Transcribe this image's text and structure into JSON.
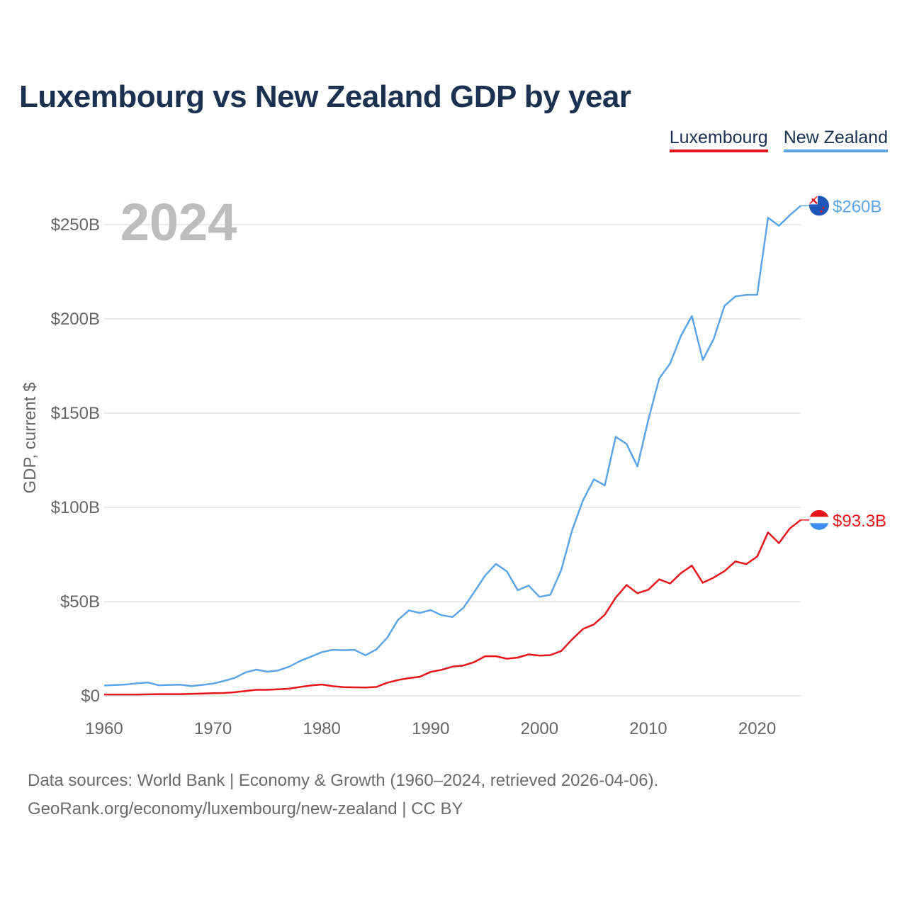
{
  "title": "Luxembourg vs New Zealand GDP by year",
  "footer": {
    "source": "Data sources: World Bank | Economy & Growth (1960–2024, retrieved 2026-04-06).",
    "site": "GeoRank.org/economy/luxembourg/new-zealand | CC BY"
  },
  "chart_data": {
    "type": "line",
    "title": "Luxembourg vs New Zealand GDP by year",
    "year_label": "2024",
    "xlabel": "",
    "ylabel": "GDP, current $",
    "xlim": [
      1960,
      2024
    ],
    "ylim": [
      0,
      260
    ],
    "unit": "billion USD",
    "x_ticks": [
      1960,
      1970,
      1980,
      1990,
      2000,
      2010,
      2020
    ],
    "y_ticks": [
      0,
      50,
      100,
      150,
      200,
      250
    ],
    "y_tick_labels": [
      "$0",
      "$50B",
      "$100B",
      "$150B",
      "$200B",
      "$250B"
    ],
    "grid": true,
    "legend_position": "top-right",
    "x": [
      1960,
      1961,
      1962,
      1963,
      1964,
      1965,
      1966,
      1967,
      1968,
      1969,
      1970,
      1971,
      1972,
      1973,
      1974,
      1975,
      1976,
      1977,
      1978,
      1979,
      1980,
      1981,
      1982,
      1983,
      1984,
      1985,
      1986,
      1987,
      1988,
      1989,
      1990,
      1991,
      1992,
      1993,
      1994,
      1995,
      1996,
      1997,
      1998,
      1999,
      2000,
      2001,
      2002,
      2003,
      2004,
      2005,
      2006,
      2007,
      2008,
      2009,
      2010,
      2011,
      2012,
      2013,
      2014,
      2015,
      2016,
      2017,
      2018,
      2019,
      2020,
      2021,
      2022,
      2023,
      2024
    ],
    "series": [
      {
        "name": "Luxembourg",
        "color": "#e8141b",
        "end_label": "$93.3B",
        "flag": "luxembourg-flag",
        "values": [
          0.7,
          0.7,
          0.7,
          0.7,
          0.8,
          0.9,
          0.9,
          0.9,
          1.0,
          1.2,
          1.4,
          1.5,
          1.9,
          2.6,
          3.2,
          3.2,
          3.5,
          3.8,
          4.7,
          5.5,
          6.0,
          5.1,
          4.6,
          4.5,
          4.4,
          4.7,
          6.9,
          8.4,
          9.4,
          10.1,
          12.7,
          13.8,
          15.5,
          16.1,
          17.9,
          21.0,
          21.0,
          19.7,
          20.3,
          22.0,
          21.3,
          21.6,
          23.8,
          30.0,
          35.5,
          37.9,
          43.0,
          52.1,
          58.8,
          54.4,
          56.3,
          61.8,
          59.6,
          65.1,
          69.1,
          60.0,
          62.7,
          66.2,
          71.3,
          69.9,
          73.9,
          86.7,
          81.0,
          88.8,
          93.3
        ]
      },
      {
        "name": "New Zealand",
        "color": "#5da5e6",
        "end_label": "$260B",
        "flag": "new-zealand-flag",
        "values": [
          5.5,
          5.7,
          6.0,
          6.6,
          7.1,
          5.6,
          5.8,
          5.9,
          5.2,
          5.8,
          6.5,
          7.9,
          9.5,
          12.5,
          13.9,
          12.8,
          13.5,
          15.5,
          18.5,
          20.8,
          23.2,
          24.4,
          24.2,
          24.4,
          21.5,
          24.6,
          30.7,
          40.3,
          45.3,
          44.0,
          45.5,
          42.8,
          41.8,
          46.7,
          55.0,
          63.8,
          70.0,
          66.0,
          56.0,
          58.5,
          52.5,
          53.6,
          66.8,
          88.0,
          103.8,
          114.9,
          111.6,
          137.4,
          133.6,
          121.7,
          146.5,
          168.3,
          176.3,
          191.0,
          201.5,
          178.2,
          189.3,
          206.9,
          211.9,
          212.7,
          212.8,
          253.7,
          249.4,
          255.0,
          260.0
        ]
      }
    ]
  }
}
